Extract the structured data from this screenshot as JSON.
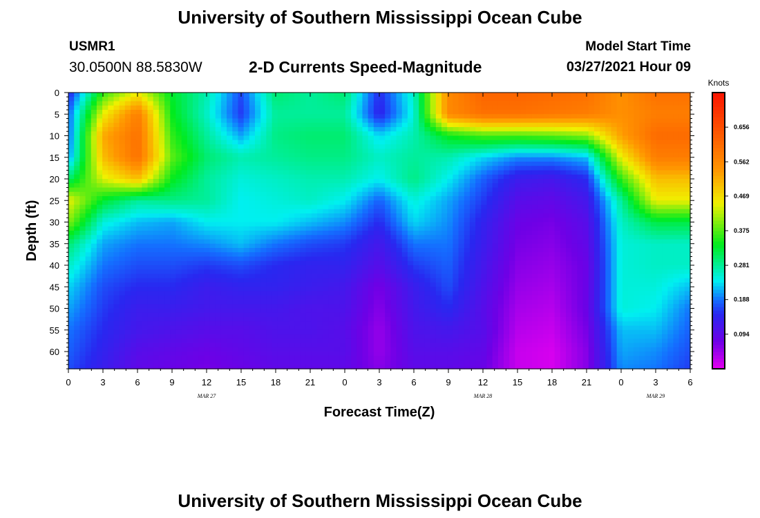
{
  "header": {
    "title": "University of Southern Mississippi Ocean Cube",
    "station_id": "USMR1",
    "coords": "30.0500N  88.5830W",
    "subtitle": "2-D Currents Speed-Magnitude",
    "model_start_label": "Model Start Time",
    "model_start_value": "03/27/2021 Hour 09"
  },
  "footer": {
    "title": "University of Southern Mississippi Ocean Cube"
  },
  "chart_data": {
    "type": "heatmap",
    "title": "2-D Currents Speed-Magnitude",
    "xlabel": "Forecast Time(Z)",
    "ylabel": "Depth (ft)",
    "x_range_hours": [
      0,
      54
    ],
    "y_range_ft": [
      0,
      64
    ],
    "x_tick_hours": [
      0,
      3,
      6,
      9,
      12,
      15,
      18,
      21,
      24,
      27,
      30,
      33,
      36,
      39,
      42,
      45,
      48,
      51,
      54
    ],
    "x_tick_labels": [
      "0",
      "3",
      "6",
      "9",
      "12",
      "15",
      "18",
      "21",
      "0",
      "3",
      "6",
      "9",
      "12",
      "15",
      "18",
      "21",
      "0",
      "3",
      "6"
    ],
    "y_ticks": [
      0,
      5,
      10,
      15,
      20,
      25,
      30,
      35,
      40,
      45,
      50,
      55,
      60
    ],
    "y_tick_labels": [
      "0",
      "5",
      "10",
      "15",
      "20",
      "25",
      "30",
      "35",
      "40",
      "45",
      "50",
      "55",
      "60"
    ],
    "date_labels": [
      {
        "label": "MAR 27",
        "hour": 12
      },
      {
        "label": "MAR 28",
        "hour": 36
      },
      {
        "label": "MAR 29",
        "hour": 51
      }
    ],
    "colorbar": {
      "unit": "Knots",
      "min": 0,
      "max": 0.75,
      "labels": [
        "0.656",
        "0.562",
        "0.469",
        "0.375",
        "0.281",
        "0.188",
        "0.094"
      ],
      "label_values": [
        0.656,
        0.562,
        0.469,
        0.375,
        0.281,
        0.188,
        0.094
      ]
    },
    "depths_ft": [
      0,
      5,
      10,
      15,
      20,
      25,
      30,
      35,
      40,
      45,
      50,
      55,
      60,
      64
    ],
    "time_hours": [
      0,
      3,
      6,
      9,
      12,
      15,
      18,
      21,
      24,
      27,
      30,
      33,
      36,
      39,
      42,
      45,
      48,
      51,
      54
    ],
    "speed_knots": [
      [
        0.14,
        0.36,
        0.45,
        0.33,
        0.27,
        0.17,
        0.3,
        0.28,
        0.3,
        0.15,
        0.26,
        0.56,
        0.62,
        0.62,
        0.61,
        0.6,
        0.55,
        0.6,
        0.6
      ],
      [
        0.18,
        0.45,
        0.58,
        0.34,
        0.26,
        0.16,
        0.28,
        0.28,
        0.28,
        0.14,
        0.25,
        0.56,
        0.6,
        0.6,
        0.59,
        0.58,
        0.55,
        0.58,
        0.58
      ],
      [
        0.18,
        0.52,
        0.6,
        0.36,
        0.28,
        0.21,
        0.29,
        0.3,
        0.3,
        0.23,
        0.27,
        0.34,
        0.37,
        0.37,
        0.38,
        0.4,
        0.53,
        0.61,
        0.61
      ],
      [
        0.2,
        0.5,
        0.6,
        0.38,
        0.3,
        0.27,
        0.28,
        0.29,
        0.29,
        0.26,
        0.28,
        0.27,
        0.23,
        0.2,
        0.2,
        0.22,
        0.45,
        0.58,
        0.58
      ],
      [
        0.3,
        0.44,
        0.5,
        0.34,
        0.28,
        0.25,
        0.26,
        0.27,
        0.27,
        0.24,
        0.29,
        0.24,
        0.18,
        0.13,
        0.12,
        0.15,
        0.36,
        0.5,
        0.5
      ],
      [
        0.45,
        0.33,
        0.28,
        0.29,
        0.28,
        0.24,
        0.25,
        0.26,
        0.24,
        0.18,
        0.25,
        0.21,
        0.16,
        0.1,
        0.09,
        0.12,
        0.28,
        0.45,
        0.45
      ],
      [
        0.4,
        0.25,
        0.22,
        0.21,
        0.24,
        0.24,
        0.24,
        0.22,
        0.2,
        0.15,
        0.23,
        0.2,
        0.14,
        0.08,
        0.07,
        0.1,
        0.26,
        0.32,
        0.32
      ],
      [
        0.3,
        0.21,
        0.19,
        0.19,
        0.2,
        0.22,
        0.19,
        0.17,
        0.16,
        0.12,
        0.19,
        0.19,
        0.13,
        0.07,
        0.06,
        0.09,
        0.25,
        0.26,
        0.26
      ],
      [
        0.26,
        0.19,
        0.17,
        0.17,
        0.16,
        0.17,
        0.15,
        0.14,
        0.14,
        0.1,
        0.16,
        0.18,
        0.12,
        0.06,
        0.05,
        0.08,
        0.25,
        0.26,
        0.26
      ],
      [
        0.23,
        0.17,
        0.15,
        0.15,
        0.13,
        0.14,
        0.14,
        0.13,
        0.12,
        0.07,
        0.13,
        0.17,
        0.11,
        0.05,
        0.04,
        0.08,
        0.25,
        0.25,
        0.22
      ],
      [
        0.21,
        0.16,
        0.13,
        0.13,
        0.12,
        0.12,
        0.12,
        0.11,
        0.11,
        0.06,
        0.12,
        0.15,
        0.1,
        0.04,
        0.03,
        0.08,
        0.25,
        0.24,
        0.19
      ],
      [
        0.19,
        0.15,
        0.12,
        0.11,
        0.1,
        0.1,
        0.11,
        0.11,
        0.1,
        0.05,
        0.11,
        0.12,
        0.1,
        0.03,
        0.02,
        0.07,
        0.22,
        0.22,
        0.18
      ],
      [
        0.18,
        0.14,
        0.1,
        0.09,
        0.08,
        0.09,
        0.1,
        0.1,
        0.1,
        0.05,
        0.1,
        0.1,
        0.09,
        0.02,
        0.01,
        0.06,
        0.21,
        0.2,
        0.17
      ],
      [
        0.17,
        0.13,
        0.09,
        0.08,
        0.07,
        0.08,
        0.09,
        0.09,
        0.09,
        0.06,
        0.09,
        0.09,
        0.08,
        0.02,
        0.01,
        0.06,
        0.2,
        0.19,
        0.16
      ]
    ]
  }
}
